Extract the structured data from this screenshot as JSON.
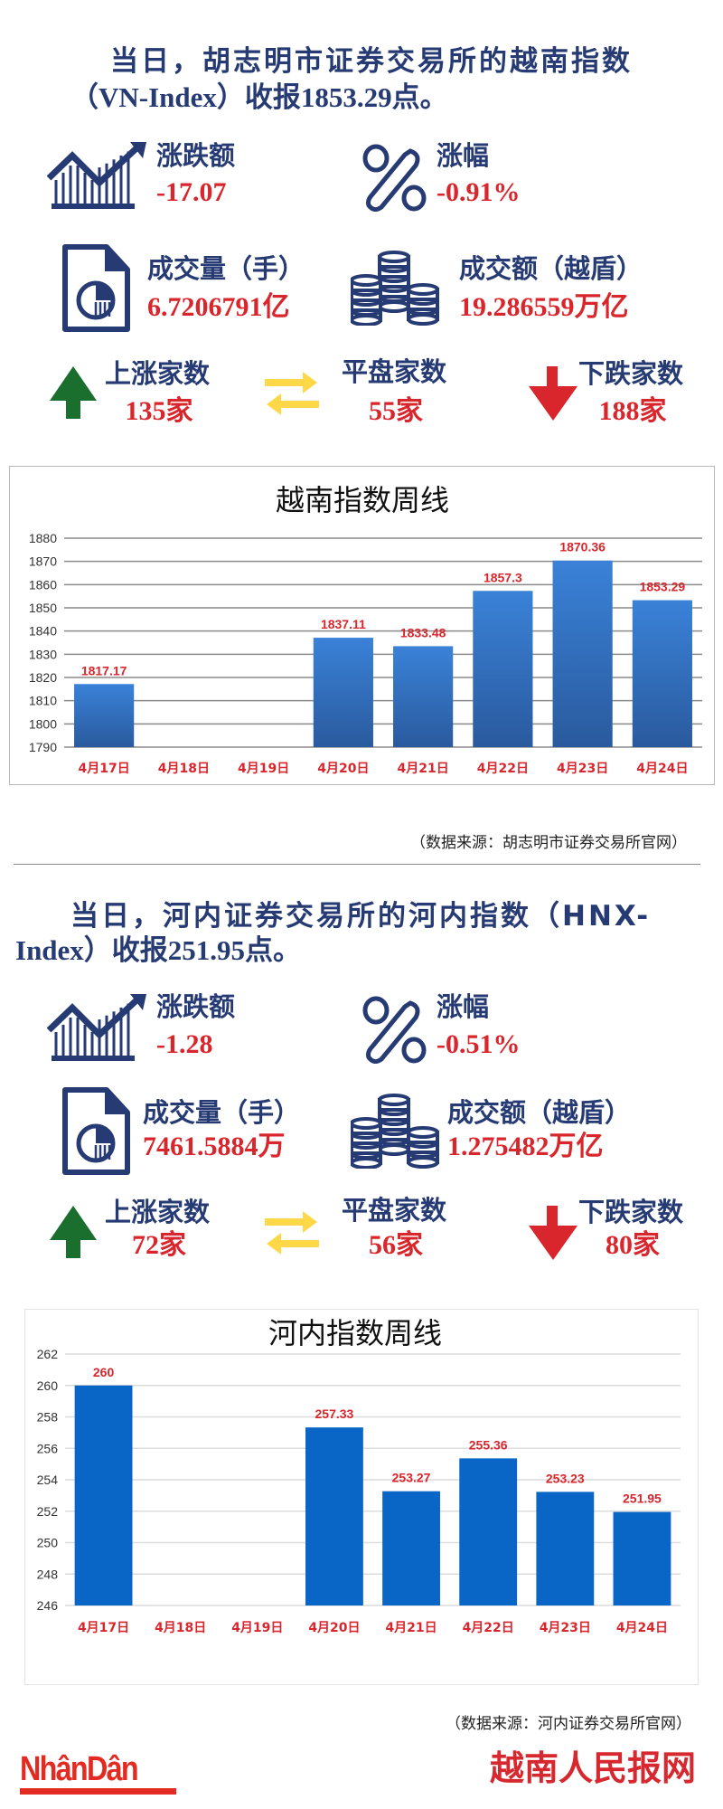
{
  "colors": {
    "navy": "#263a73",
    "red": "#d9262c",
    "green": "#1a6e2e",
    "yellow": "#ffd84a",
    "bar1": "#3277cc",
    "bar2": "#0a66c6"
  },
  "sections": [
    {
      "headline_line1": "当日，胡志明市证券交易所的越南指数",
      "headline_line2": "（VN-Index）收报1853.29点。",
      "change_label": "涨跌额",
      "change_value": "-17.07",
      "pct_label": "涨幅",
      "pct_value": "-0.91%",
      "volume_label": "成交量（手）",
      "volume_value": "6.7206791亿",
      "turnover_label": "成交额（越盾）",
      "turnover_value": "19.286559万亿",
      "up_label": "上涨家数",
      "up_value": "135家",
      "flat_label": "平盘家数",
      "flat_value": "55家",
      "down_label": "下跌家数",
      "down_value": "188家",
      "source": "（数据来源：胡志明市证券交易所官网）"
    },
    {
      "headline_line1": "当日，河内证券交易所的河内指数（HNX-",
      "headline_line2": "Index）收报251.95点。",
      "change_label": "涨跌额",
      "change_value": "-1.28",
      "pct_label": "涨幅",
      "pct_value": "-0.51%",
      "volume_label": "成交量（手）",
      "volume_value": "7461.5884万",
      "turnover_label": "成交额（越盾）",
      "turnover_value": "1.275482万亿",
      "up_label": "上涨家数",
      "up_value": "72家",
      "flat_label": "平盘家数",
      "flat_value": "56家",
      "down_label": "下跌家数",
      "down_value": "80家",
      "source": "（数据来源：河内证券交易所官网）"
    }
  ],
  "chart_data": [
    {
      "type": "bar",
      "title": "越南指数周线",
      "categories": [
        "4月17日",
        "4月18日",
        "4月19日",
        "4月20日",
        "4月21日",
        "4月22日",
        "4月23日",
        "4月24日"
      ],
      "values": [
        1817.17,
        null,
        null,
        1837.11,
        1833.48,
        1857.3,
        1870.36,
        1853.29
      ],
      "data_labels": [
        "1817.17",
        "",
        "",
        "1837.11",
        "1833.48",
        "1857.3",
        "1870.36",
        "1853.29"
      ],
      "ylim": [
        1790,
        1880
      ],
      "yticks": [
        1790,
        1800,
        1810,
        1820,
        1830,
        1840,
        1850,
        1860,
        1870,
        1880
      ],
      "grid": true
    },
    {
      "type": "bar",
      "title": "河内指数周线",
      "categories": [
        "4月17日",
        "4月18日",
        "4月19日",
        "4月20日",
        "4月21日",
        "4月22日",
        "4月23日",
        "4月24日"
      ],
      "values": [
        260,
        null,
        null,
        257.33,
        253.27,
        255.36,
        253.23,
        251.95
      ],
      "data_labels": [
        "260",
        "",
        "",
        "257.33",
        "253.27",
        "255.36",
        "253.23",
        "251.95"
      ],
      "ylim": [
        246,
        262
      ],
      "yticks": [
        246,
        248,
        250,
        252,
        254,
        256,
        258,
        260,
        262
      ],
      "grid": true
    }
  ],
  "footer": {
    "logo_left": "NhânDân",
    "logo_right": "越南人民报网"
  }
}
